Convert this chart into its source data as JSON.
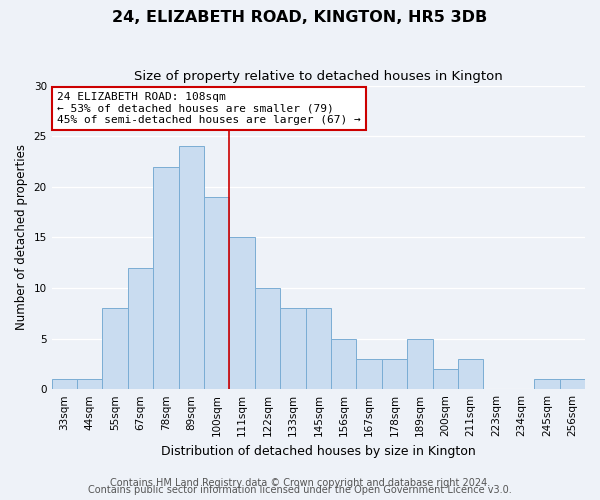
{
  "title": "24, ELIZABETH ROAD, KINGTON, HR5 3DB",
  "subtitle": "Size of property relative to detached houses in Kington",
  "xlabel": "Distribution of detached houses by size in Kington",
  "ylabel": "Number of detached properties",
  "categories": [
    "33sqm",
    "44sqm",
    "55sqm",
    "67sqm",
    "78sqm",
    "89sqm",
    "100sqm",
    "111sqm",
    "122sqm",
    "133sqm",
    "145sqm",
    "156sqm",
    "167sqm",
    "178sqm",
    "189sqm",
    "200sqm",
    "211sqm",
    "223sqm",
    "234sqm",
    "245sqm",
    "256sqm"
  ],
  "values": [
    1,
    1,
    8,
    12,
    22,
    24,
    19,
    15,
    10,
    8,
    8,
    5,
    3,
    3,
    5,
    2,
    3,
    0,
    0,
    1,
    1
  ],
  "bar_color": "#c9dcf0",
  "bar_edge_color": "#7aadd4",
  "vline_x_index": 6.5,
  "vline_color": "#cc0000",
  "annotation_line1": "24 ELIZABETH ROAD: 108sqm",
  "annotation_line2": "← 53% of detached houses are smaller (79)",
  "annotation_line3": "45% of semi-detached houses are larger (67) →",
  "annotation_box_edge_color": "#cc0000",
  "ylim": [
    0,
    30
  ],
  "yticks": [
    0,
    5,
    10,
    15,
    20,
    25,
    30
  ],
  "footer_line1": "Contains HM Land Registry data © Crown copyright and database right 2024.",
  "footer_line2": "Contains public sector information licensed under the Open Government Licence v3.0.",
  "bg_color": "#eef2f8",
  "grid_color": "#ffffff",
  "title_fontsize": 11.5,
  "subtitle_fontsize": 9.5,
  "xlabel_fontsize": 9,
  "ylabel_fontsize": 8.5,
  "tick_fontsize": 7.5,
  "annotation_fontsize": 8,
  "footer_fontsize": 7
}
